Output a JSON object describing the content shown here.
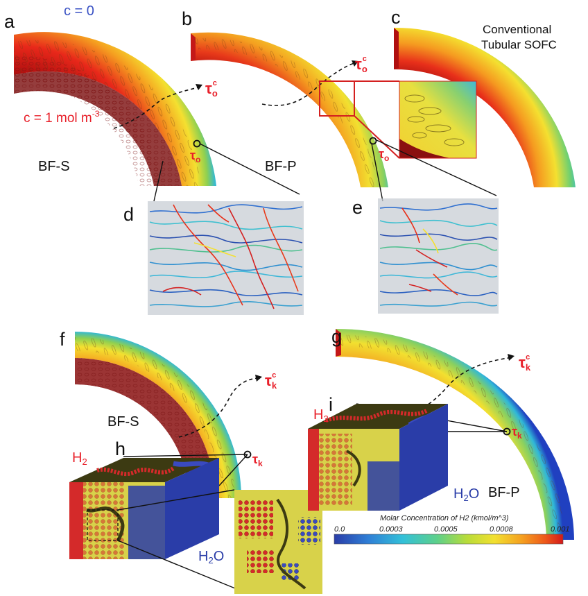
{
  "panels": {
    "a": "a",
    "b": "b",
    "c": "c",
    "d": "d",
    "e": "e",
    "f": "f",
    "g": "g",
    "h": "h",
    "i": "i"
  },
  "labels": {
    "c_zero": "c = 0",
    "c_one": "c = 1 mol m",
    "c_one_exp": "-3",
    "conventional_line1": "Conventional",
    "conventional_line2": "Tubular SOFC",
    "bfs_top": "BF-S",
    "bfp_top": "BF-P",
    "bfs_bottom": "BF-S",
    "bfp_bottom": "BF-P",
    "tau": "τ",
    "sub_o": "o",
    "sub_k": "k",
    "sup_c": "c",
    "h2": "H",
    "h2_sub": "2",
    "h2o": "H",
    "h2o_sub": "2",
    "h2o_tail": "O"
  },
  "colorbar": {
    "title": "Molar Concentration of H2 (kmol/m^3)",
    "ticks": [
      "0.0",
      "0.0003",
      "0.0005",
      "0.0008",
      "0.001"
    ]
  },
  "colors": {
    "tau_red": "#e8202a",
    "c_blue": "#3a52c4",
    "cube_red": "#d42a2a",
    "cube_blue": "#2a3da8",
    "cube_yellow": "#d8d24a",
    "cube_dark": "#3c3a12"
  }
}
